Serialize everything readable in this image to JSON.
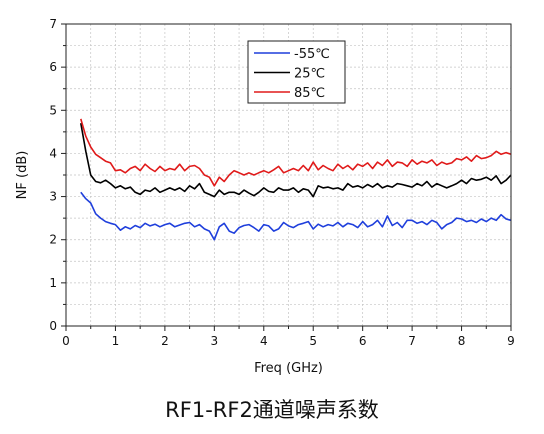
{
  "caption": "RF1-RF2通道噪声系数",
  "chart_data": {
    "type": "line",
    "title": "",
    "xlabel": "Freq (GHz)",
    "ylabel": "NF (dB)",
    "xlim": [
      0,
      9
    ],
    "ylim": [
      0,
      7
    ],
    "xticks": [
      0,
      1,
      2,
      3,
      4,
      5,
      6,
      7,
      8,
      9
    ],
    "yticks": [
      0,
      1,
      2,
      3,
      4,
      5,
      6,
      7
    ],
    "grid": true,
    "legend_position": "top-center",
    "series": [
      {
        "name": "-55℃",
        "color": "#1f3fdc",
        "x": [
          0.3,
          0.4,
          0.5,
          0.6,
          0.7,
          0.8,
          0.9,
          1.0,
          1.1,
          1.2,
          1.3,
          1.4,
          1.5,
          1.6,
          1.7,
          1.8,
          1.9,
          2.0,
          2.1,
          2.2,
          2.3,
          2.4,
          2.5,
          2.6,
          2.7,
          2.8,
          2.9,
          3.0,
          3.1,
          3.2,
          3.3,
          3.4,
          3.5,
          3.6,
          3.7,
          3.8,
          3.9,
          4.0,
          4.1,
          4.2,
          4.3,
          4.4,
          4.5,
          4.6,
          4.7,
          4.8,
          4.9,
          5.0,
          5.1,
          5.2,
          5.3,
          5.4,
          5.5,
          5.6,
          5.7,
          5.8,
          5.9,
          6.0,
          6.1,
          6.2,
          6.3,
          6.4,
          6.5,
          6.6,
          6.7,
          6.8,
          6.9,
          7.0,
          7.1,
          7.2,
          7.3,
          7.4,
          7.5,
          7.6,
          7.7,
          7.8,
          7.9,
          8.0,
          8.1,
          8.2,
          8.3,
          8.4,
          8.5,
          8.6,
          8.7,
          8.8,
          8.9,
          9.0
        ],
        "values": [
          3.1,
          2.95,
          2.85,
          2.6,
          2.5,
          2.42,
          2.38,
          2.35,
          2.22,
          2.3,
          2.25,
          2.33,
          2.28,
          2.38,
          2.32,
          2.36,
          2.3,
          2.35,
          2.38,
          2.3,
          2.34,
          2.38,
          2.4,
          2.3,
          2.35,
          2.25,
          2.2,
          2.0,
          2.3,
          2.38,
          2.2,
          2.15,
          2.28,
          2.33,
          2.35,
          2.28,
          2.2,
          2.35,
          2.32,
          2.2,
          2.25,
          2.4,
          2.32,
          2.28,
          2.35,
          2.38,
          2.42,
          2.25,
          2.36,
          2.3,
          2.35,
          2.32,
          2.4,
          2.3,
          2.38,
          2.35,
          2.28,
          2.42,
          2.3,
          2.35,
          2.45,
          2.3,
          2.55,
          2.33,
          2.4,
          2.28,
          2.45,
          2.45,
          2.38,
          2.42,
          2.35,
          2.45,
          2.4,
          2.25,
          2.35,
          2.4,
          2.5,
          2.48,
          2.42,
          2.45,
          2.4,
          2.48,
          2.42,
          2.5,
          2.45,
          2.58,
          2.48,
          2.45
        ]
      },
      {
        "name": "25℃",
        "color": "#000000",
        "x": [
          0.3,
          0.4,
          0.5,
          0.6,
          0.7,
          0.8,
          0.9,
          1.0,
          1.1,
          1.2,
          1.3,
          1.4,
          1.5,
          1.6,
          1.7,
          1.8,
          1.9,
          2.0,
          2.1,
          2.2,
          2.3,
          2.4,
          2.5,
          2.6,
          2.7,
          2.8,
          2.9,
          3.0,
          3.1,
          3.2,
          3.3,
          3.4,
          3.5,
          3.6,
          3.7,
          3.8,
          3.9,
          4.0,
          4.1,
          4.2,
          4.3,
          4.4,
          4.5,
          4.6,
          4.7,
          4.8,
          4.9,
          5.0,
          5.1,
          5.2,
          5.3,
          5.4,
          5.5,
          5.6,
          5.7,
          5.8,
          5.9,
          6.0,
          6.1,
          6.2,
          6.3,
          6.4,
          6.5,
          6.6,
          6.7,
          6.8,
          6.9,
          7.0,
          7.1,
          7.2,
          7.3,
          7.4,
          7.5,
          7.6,
          7.7,
          7.8,
          7.9,
          8.0,
          8.1,
          8.2,
          8.3,
          8.4,
          8.5,
          8.6,
          8.7,
          8.8,
          8.9,
          9.0
        ],
        "values": [
          4.7,
          4.05,
          3.5,
          3.35,
          3.32,
          3.38,
          3.3,
          3.2,
          3.25,
          3.18,
          3.22,
          3.1,
          3.05,
          3.15,
          3.12,
          3.2,
          3.1,
          3.15,
          3.2,
          3.15,
          3.2,
          3.12,
          3.25,
          3.18,
          3.3,
          3.1,
          3.05,
          3.0,
          3.15,
          3.05,
          3.1,
          3.1,
          3.05,
          3.15,
          3.08,
          3.02,
          3.1,
          3.2,
          3.12,
          3.1,
          3.2,
          3.15,
          3.15,
          3.2,
          3.1,
          3.18,
          3.15,
          3.0,
          3.25,
          3.2,
          3.22,
          3.18,
          3.2,
          3.15,
          3.3,
          3.22,
          3.25,
          3.2,
          3.28,
          3.22,
          3.3,
          3.2,
          3.25,
          3.22,
          3.3,
          3.28,
          3.25,
          3.22,
          3.3,
          3.25,
          3.35,
          3.22,
          3.3,
          3.25,
          3.2,
          3.25,
          3.3,
          3.38,
          3.3,
          3.42,
          3.38,
          3.4,
          3.45,
          3.38,
          3.48,
          3.3,
          3.38,
          3.5
        ]
      },
      {
        "name": "85℃",
        "color": "#e01a1a",
        "x": [
          0.3,
          0.4,
          0.5,
          0.6,
          0.7,
          0.8,
          0.9,
          1.0,
          1.1,
          1.2,
          1.3,
          1.4,
          1.5,
          1.6,
          1.7,
          1.8,
          1.9,
          2.0,
          2.1,
          2.2,
          2.3,
          2.4,
          2.5,
          2.6,
          2.7,
          2.8,
          2.9,
          3.0,
          3.1,
          3.2,
          3.3,
          3.4,
          3.5,
          3.6,
          3.7,
          3.8,
          3.9,
          4.0,
          4.1,
          4.2,
          4.3,
          4.4,
          4.5,
          4.6,
          4.7,
          4.8,
          4.9,
          5.0,
          5.1,
          5.2,
          5.3,
          5.4,
          5.5,
          5.6,
          5.7,
          5.8,
          5.9,
          6.0,
          6.1,
          6.2,
          6.3,
          6.4,
          6.5,
          6.6,
          6.7,
          6.8,
          6.9,
          7.0,
          7.1,
          7.2,
          7.3,
          7.4,
          7.5,
          7.6,
          7.7,
          7.8,
          7.9,
          8.0,
          8.1,
          8.2,
          8.3,
          8.4,
          8.5,
          8.6,
          8.7,
          8.8,
          8.9,
          9.0
        ],
        "values": [
          4.8,
          4.4,
          4.15,
          3.98,
          3.9,
          3.82,
          3.78,
          3.6,
          3.62,
          3.55,
          3.65,
          3.7,
          3.6,
          3.75,
          3.65,
          3.58,
          3.7,
          3.6,
          3.65,
          3.62,
          3.75,
          3.6,
          3.7,
          3.72,
          3.65,
          3.5,
          3.45,
          3.25,
          3.45,
          3.35,
          3.5,
          3.6,
          3.55,
          3.5,
          3.55,
          3.5,
          3.55,
          3.6,
          3.55,
          3.62,
          3.7,
          3.55,
          3.6,
          3.65,
          3.6,
          3.72,
          3.6,
          3.8,
          3.62,
          3.72,
          3.65,
          3.6,
          3.75,
          3.65,
          3.72,
          3.62,
          3.75,
          3.7,
          3.78,
          3.65,
          3.8,
          3.72,
          3.85,
          3.7,
          3.8,
          3.78,
          3.7,
          3.85,
          3.75,
          3.82,
          3.78,
          3.85,
          3.72,
          3.8,
          3.75,
          3.78,
          3.88,
          3.85,
          3.92,
          3.82,
          3.95,
          3.88,
          3.9,
          3.95,
          4.05,
          3.98,
          4.02,
          3.98
        ]
      }
    ]
  }
}
